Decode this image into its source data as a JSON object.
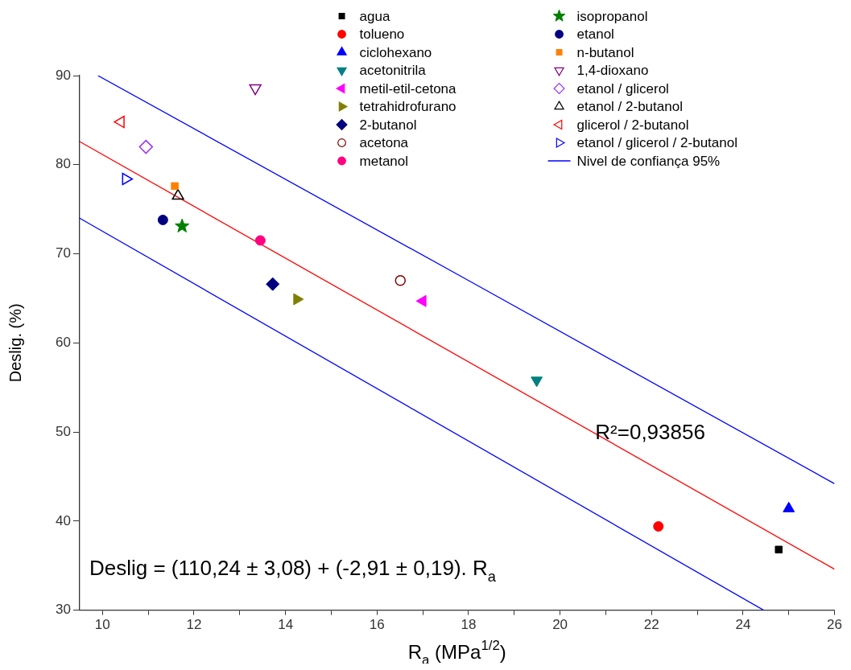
{
  "chart_data": {
    "type": "scatter",
    "xlabel": "R$_{a}$ (MPa$^{1/2}$)",
    "ylabel": "Deslig. (%)",
    "xlim": [
      9.5,
      26
    ],
    "ylim": [
      30,
      90
    ],
    "xticks": [
      10,
      {
        "value": 11,
        "label": null
      },
      12,
      {
        "value": 13,
        "label": null
      },
      14,
      {
        "value": 15,
        "label": null
      },
      16,
      {
        "value": 17,
        "label": null
      },
      18,
      {
        "value": 19,
        "label": null
      },
      20,
      {
        "value": 21,
        "label": null
      },
      22,
      {
        "value": 23,
        "label": null
      },
      24,
      {
        "value": 25,
        "label": null
      },
      26
    ],
    "yticks": [
      30,
      40,
      50,
      60,
      70,
      80,
      90
    ],
    "grid": false,
    "legend": "top right",
    "annotations": [
      "R²=0,93856",
      "Deslig = (110,24 ± 3,08) + (-2,91 ± 0,19). R$_{a}$"
    ],
    "series": [
      {
        "name": "agua",
        "color": "#000000",
        "marker": "square",
        "x": [
          24.78
        ],
        "values": [
          36.8
        ]
      },
      {
        "name": "tolueno",
        "color": "#ff0000",
        "marker": "circle",
        "x": [
          22.15
        ],
        "values": [
          39.4
        ]
      },
      {
        "name": "ciclohexano",
        "color": "#0000ff",
        "marker": "triangle",
        "x": [
          25.0
        ],
        "values": [
          41.4
        ]
      },
      {
        "name": "acetonitrila",
        "color": "#008080",
        "marker": "triangle-down",
        "x": [
          19.49
        ],
        "values": [
          55.8
        ]
      },
      {
        "name": "metil-etil-cetona",
        "color": "#ff00ff",
        "marker": "triangle-left",
        "x": [
          17.0
        ],
        "values": [
          64.7
        ]
      },
      {
        "name": "tetrahidrofurano",
        "color": "#808000",
        "marker": "triangle-right",
        "x": [
          14.25
        ],
        "values": [
          64.9
        ]
      },
      {
        "name": "2-butanol",
        "color": "#000080",
        "marker": "diamond",
        "x": [
          13.72
        ],
        "values": [
          66.6
        ]
      },
      {
        "name": "acetona",
        "color": "#800000",
        "marker": "circle-open",
        "x": [
          16.51
        ],
        "values": [
          67.0
        ]
      },
      {
        "name": "metanol",
        "color": "#ff0080",
        "marker": "circle",
        "x": [
          13.45
        ],
        "values": [
          71.5
        ]
      },
      {
        "name": "isopropanol",
        "color": "#008000",
        "marker": "star",
        "x": [
          11.74
        ],
        "values": [
          73.1
        ]
      },
      {
        "name": "etanol",
        "color": "#000080",
        "marker": "circle",
        "x": [
          11.32
        ],
        "values": [
          73.8
        ]
      },
      {
        "name": "n-butanol",
        "color": "#ff8000",
        "marker": "square",
        "x": [
          11.58
        ],
        "values": [
          77.6
        ]
      },
      {
        "name": "1,4-dioxano",
        "color": "#800080",
        "marker": "triangle-down-open",
        "x": [
          13.34
        ],
        "values": [
          88.6
        ]
      },
      {
        "name": "etanol / glicerol",
        "color": "#9933ff",
        "marker": "diamond-open",
        "x": [
          10.95
        ],
        "values": [
          82.0
        ]
      },
      {
        "name": "etanol / 2-butanol",
        "color": "#000000",
        "marker": "triangle-open",
        "x": [
          11.65
        ],
        "values": [
          76.5
        ]
      },
      {
        "name": "glicerol / 2-butanol",
        "color": "#ff0000",
        "marker": "triangle-left-open",
        "x": [
          10.4
        ],
        "values": [
          84.8
        ]
      },
      {
        "name": "etanol / glicerol / 2-butanol",
        "color": "#0000ff",
        "marker": "triangle-right-open",
        "x": [
          10.51
        ],
        "values": [
          78.4
        ]
      },
      {
        "name": "Nivel de confiança 95%",
        "type": "line",
        "color": "#0000ff",
        "marker": "none",
        "x": [
          9.9,
          18,
          26
        ],
        "values": [
          90,
          67,
          44.2
        ]
      },
      {
        "type": "line",
        "color": "#0000ff",
        "marker": "none",
        "x": [
          9.5,
          24.45
        ],
        "values": [
          74,
          30
        ]
      },
      {
        "type": "line",
        "color": "#ff0000",
        "marker": "none",
        "x": [
          9.5,
          26
        ],
        "values": [
          82.6,
          34.6
        ]
      }
    ]
  }
}
